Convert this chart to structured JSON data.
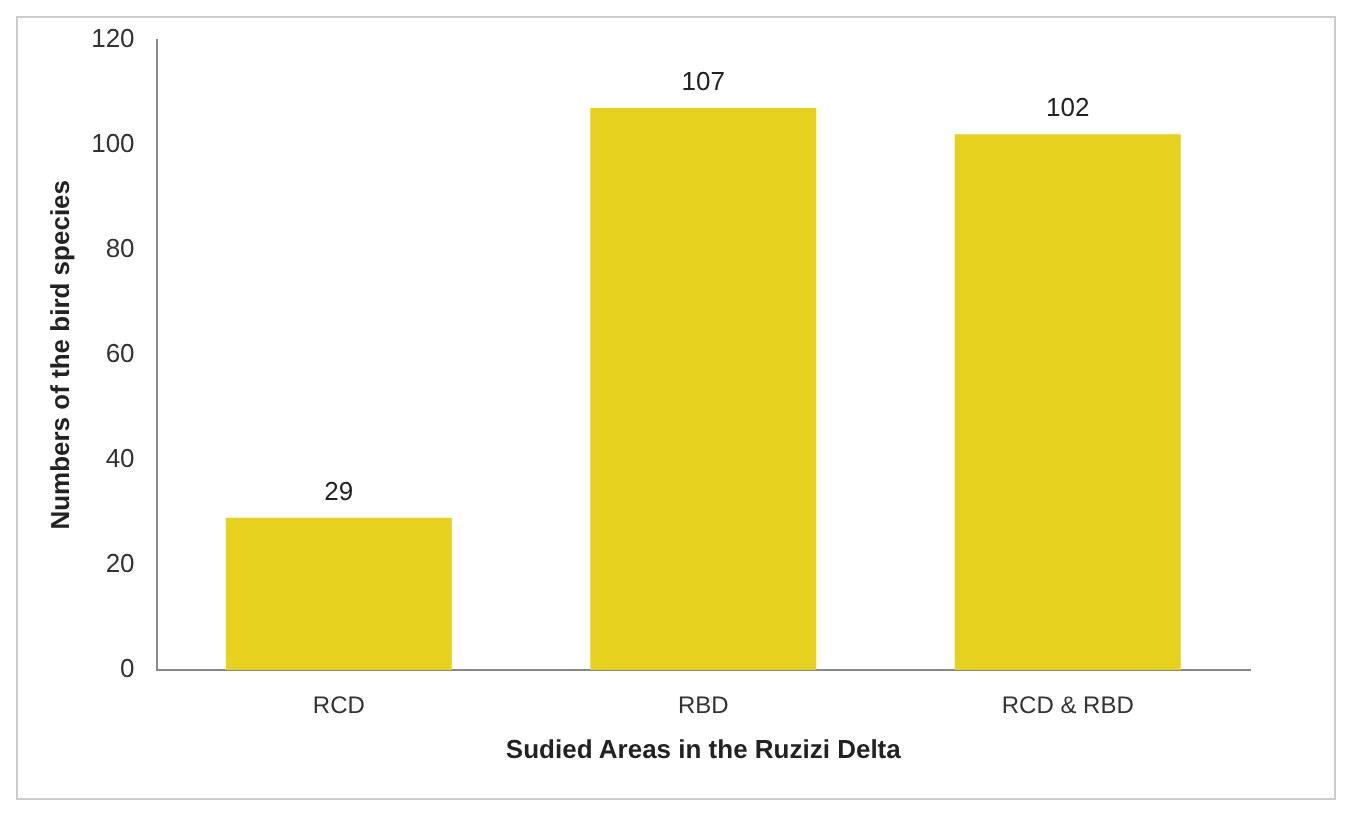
{
  "chart_data": {
    "type": "bar",
    "xlabel": "Sudied Areas in the Ruzizi Delta",
    "ylabel": "Numbers of the bird species",
    "categories": [
      "RCD",
      "RBD",
      "RCD & RBD"
    ],
    "values": [
      29,
      107,
      102
    ],
    "color": "#e6d21e",
    "ylim": [
      0,
      120
    ],
    "yticks": [
      0,
      20,
      40,
      60,
      80,
      100,
      120
    ],
    "grid": false,
    "legend": false,
    "data_labels": true
  }
}
